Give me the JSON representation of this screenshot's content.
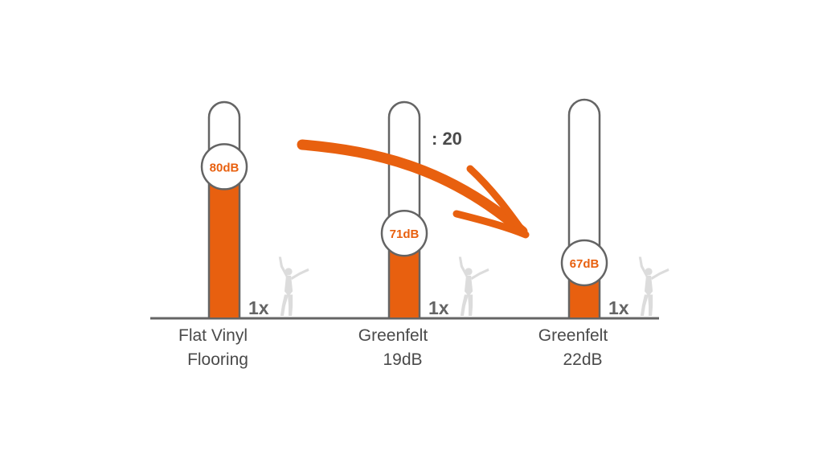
{
  "colors": {
    "accent": "#E8600F",
    "outline": "#646464",
    "text": "#4A4A4A",
    "figure": "#DCDCDC"
  },
  "chart_data": {
    "type": "bar",
    "categories": [
      "Flat Vinyl Flooring",
      "Greenfelt 19dB",
      "Greenfelt 22dB"
    ],
    "category_lines": [
      [
        "Flat Vinyl",
        "Flooring"
      ],
      [
        "Greenfelt",
        "19dB"
      ],
      [
        "Greenfelt",
        "22dB"
      ]
    ],
    "values": [
      80,
      71,
      67
    ],
    "value_labels": [
      "80dB",
      "71dB",
      "67dB"
    ],
    "multipliers": [
      "1x",
      "1x",
      "1x"
    ],
    "arrow_label": ": 20"
  }
}
